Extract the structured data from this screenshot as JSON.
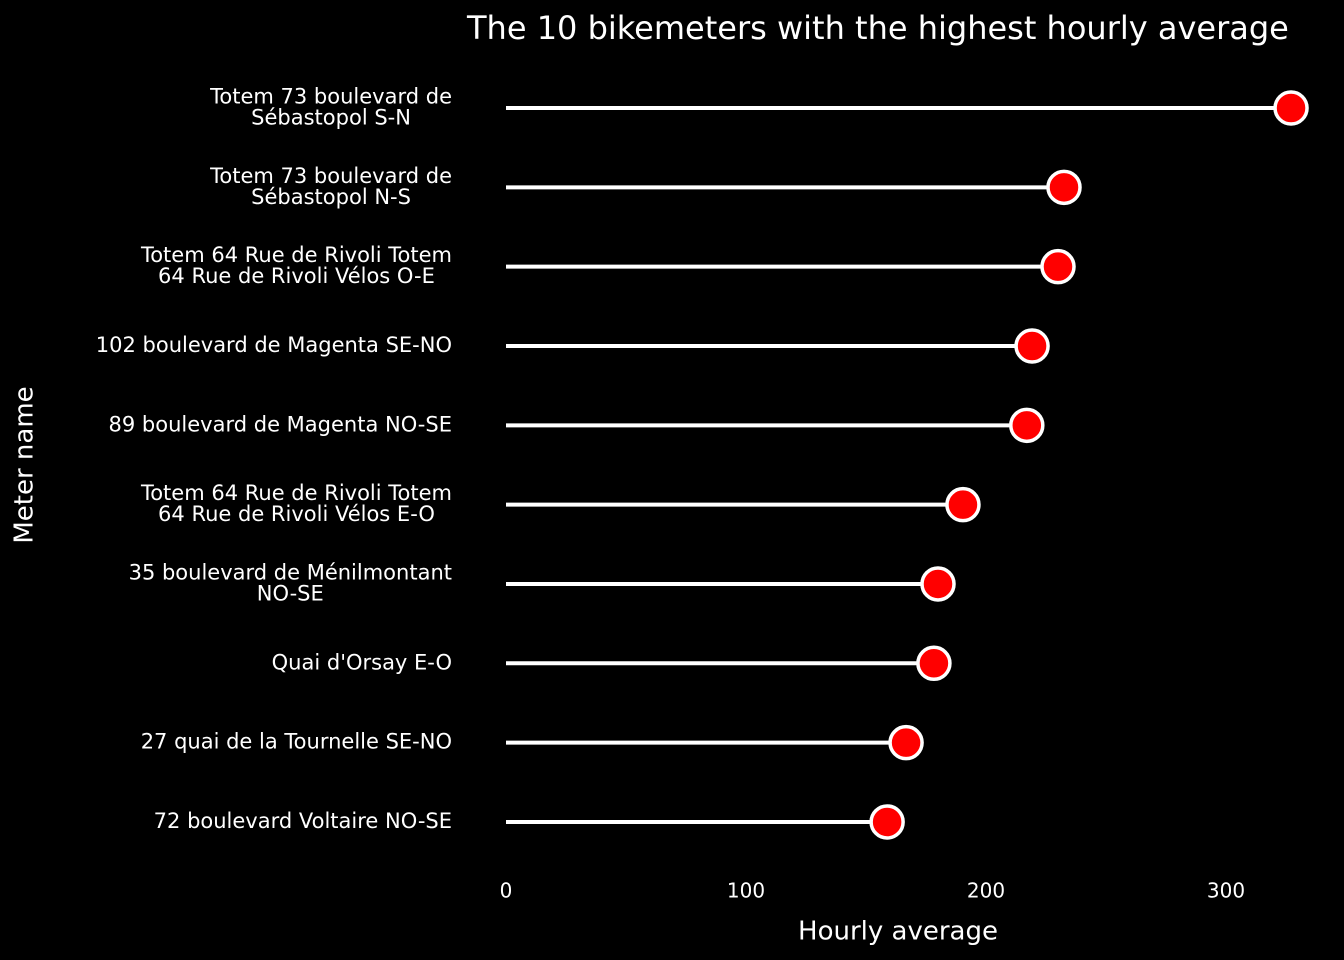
{
  "chart_data": {
    "type": "lollipop",
    "title": "The 10 bikemeters with the highest hourly average",
    "x_label": "Hourly average",
    "y_label": "Meter name",
    "categories": [
      "Totem 73 boulevard de\nSébastopol S-N",
      "Totem 73 boulevard de\nSébastopol N-S",
      "Totem 64 Rue de Rivoli Totem\n64 Rue de Rivoli Vélos O-E",
      "102 boulevard de Magenta SE-NO",
      "89 boulevard de Magenta NO-SE",
      "Totem 64 Rue de Rivoli Totem\n64 Rue de Rivoli Vélos E-O",
      "35 boulevard de Ménilmontant\nNO-SE",
      "Quai d'Orsay E-O",
      "27 quai de la Tournelle SE-NO",
      "72 boulevard Voltaire NO-SE"
    ],
    "values": [
      327.1,
      232.5,
      230.0,
      219.2,
      217.0,
      190.4,
      180.0,
      178.3,
      166.7,
      158.8
    ],
    "color": "#ff0000",
    "stem_color": "#ffffff",
    "marker_edge_color": "#ffffff",
    "xlim": [
      -10,
      340
    ],
    "xticks": [
      0,
      100,
      200,
      300
    ]
  }
}
